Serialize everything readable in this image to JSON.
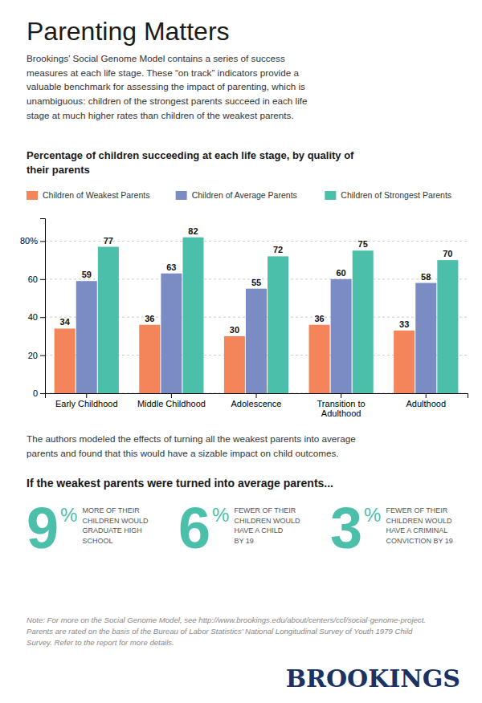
{
  "title": "Parenting Matters",
  "intro_text": "Brookings’ Social Genome Model contains a series of success\nmeasures at each life stage. These “on track” indicators provide a\nvaluable benchmark for assessing the impact of parenting, which is\nunambiguous: children of the strongest parents succeed in each life\nstage at much higher rates than children of the weakest parents.",
  "chart_data": {
    "type": "bar",
    "title": "Percentage of children succeeding at each life stage, by quality of\ntheir parents",
    "categories": [
      "Early Childhood",
      "Middle Childhood",
      "Adolescence",
      "Transition to\nAdulthood",
      "Adulthood"
    ],
    "series": [
      {
        "name": "Children of Weakest Parents",
        "color": "#f4845a",
        "values": [
          34,
          36,
          30,
          36,
          33
        ]
      },
      {
        "name": "Children of Average Parents",
        "color": "#7b8cc4",
        "values": [
          59,
          63,
          55,
          60,
          58
        ]
      },
      {
        "name": "Children of Strongest Parents",
        "color": "#4cbfab",
        "values": [
          77,
          82,
          72,
          75,
          70
        ]
      }
    ],
    "ylim": [
      0,
      92
    ],
    "yticks": [
      0,
      20,
      40,
      60,
      {
        "value": 80,
        "label": "80%"
      }
    ],
    "grid": true,
    "legend": "top",
    "data_labels": true
  },
  "body_text": "The authors modeled the effects of turning all the weakest parents into average\nparents and found that this would have a sizable impact on child outcomes.",
  "section_title": "If the weakest parents were turned into average parents...",
  "stats": [
    {
      "number": "9",
      "unit": "%",
      "label": "MORE OF THEIR\nCHILDREN WOULD\nGRADUATE HIGH\nSCHOOL",
      "color": "#4cbfab"
    },
    {
      "number": "6",
      "unit": "%",
      "label": "FEWER OF THEIR\nCHILDREN WOULD\nHAVE A CHILD\nBY 19",
      "color": "#4cbfab"
    },
    {
      "number": "3",
      "unit": "%",
      "label": "FEWER OF THEIR\nCHILDREN WOULD\nHAVE A CRIMINAL\nCONVICTION BY 19",
      "color": "#4cbfab"
    }
  ],
  "note_text": "Note: For more on the Social Genome Model, see http://www.brookings.edu/about/centers/ccf/social-genome-project.\nParents are rated on the basis of the Bureau of Labor Statistics’ National Longitudinal Survey of Youth 1979 Child\nSurvey. Refer to the report for more details.",
  "logo": "BROOKINGS",
  "logo_color": "#1a3264"
}
